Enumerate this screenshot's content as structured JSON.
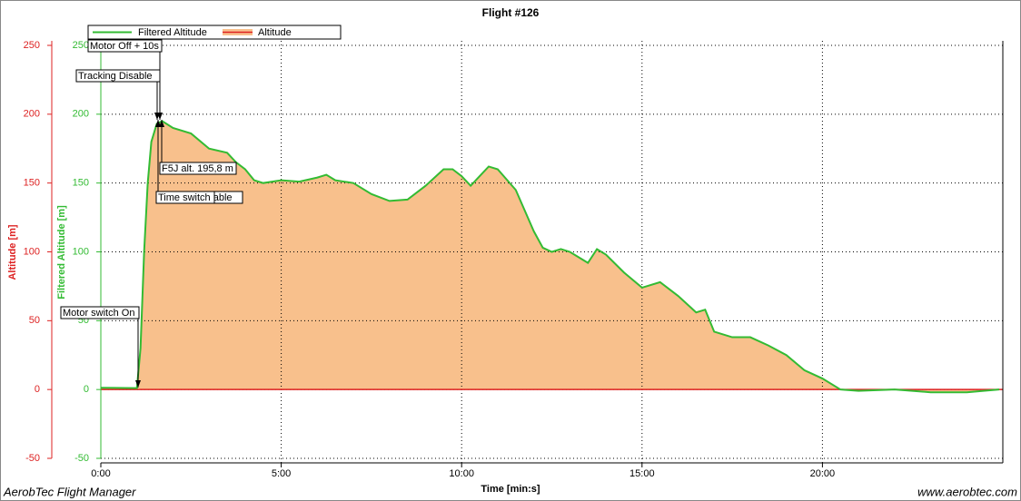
{
  "chart_data": {
    "type": "line",
    "title": "Flight #126",
    "x_label": "Time [min:s]",
    "y_label": "Altitude [m]",
    "y2_label": "Filtered Altitude [m]",
    "footer_left": "AerobTec Flight Manager",
    "footer_right": "www.aerobtec.com",
    "x": [
      0,
      1.0,
      1.1,
      1.2,
      1.3,
      1.4,
      1.55,
      1.7,
      2.0,
      2.5,
      3.0,
      3.5,
      3.75,
      4.0,
      4.25,
      4.5,
      5.0,
      5.5,
      6.0,
      6.25,
      6.5,
      7.0,
      7.5,
      8.0,
      8.5,
      9.0,
      9.5,
      9.75,
      10.0,
      10.25,
      10.5,
      10.75,
      11.0,
      11.5,
      12.0,
      12.25,
      12.5,
      12.75,
      13.0,
      13.5,
      13.75,
      14.0,
      14.5,
      15.0,
      15.5,
      16.0,
      16.5,
      16.75,
      17.0,
      17.5,
      18.0,
      18.5,
      19.0,
      19.5,
      20.0,
      20.5,
      21.0,
      22.0,
      23.0,
      24.0,
      24.9
    ],
    "series": [
      {
        "name": "Filtered Altitude",
        "color": "#33bb33",
        "axis": "y2",
        "values": [
          1.3,
          1,
          30,
          100,
          150,
          180,
          193,
          195,
          190,
          186,
          175,
          172,
          165,
          160,
          152,
          150,
          152,
          151,
          154,
          156,
          152,
          150,
          142,
          137,
          138,
          148,
          160,
          160,
          155,
          148,
          155,
          162,
          160,
          145,
          115,
          103,
          100,
          102,
          100,
          92,
          102,
          98,
          85,
          74,
          78,
          68,
          56,
          58,
          42,
          38,
          38,
          32,
          25,
          14,
          8,
          0,
          -1,
          0,
          -2,
          -2,
          0
        ]
      },
      {
        "name": "Altitude",
        "color": "#f8c08c",
        "line_color": "#dd2222",
        "values": [
          1.3,
          1,
          30,
          100,
          150,
          180,
          193,
          195,
          190,
          186,
          175,
          172,
          165,
          160,
          152,
          150,
          152,
          151,
          154,
          156,
          152,
          150,
          142,
          137,
          138,
          148,
          160,
          160,
          155,
          148,
          155,
          162,
          160,
          145,
          115,
          103,
          100,
          102,
          100,
          92,
          102,
          98,
          85,
          74,
          78,
          68,
          56,
          58,
          42,
          38,
          38,
          32,
          25,
          14,
          8,
          0,
          -1,
          0,
          -2,
          -2,
          0
        ]
      }
    ],
    "xlim": [
      0,
      25
    ],
    "xticks": [
      {
        "value": 0,
        "label": "0:00"
      },
      {
        "value": 5,
        "label": "5:00"
      },
      {
        "value": 10,
        "label": "10:00"
      },
      {
        "value": 15,
        "label": "15:00"
      },
      {
        "value": 20,
        "label": "20:00"
      }
    ],
    "ylim": [
      -50,
      250
    ],
    "yticks": [
      -50,
      0,
      50,
      100,
      150,
      200,
      250
    ],
    "y2lim": [
      -50,
      250
    ],
    "y2ticks": [
      -50,
      0,
      50,
      100,
      150,
      200,
      250
    ],
    "grid": true,
    "annotations": [
      "Motor Off + 10s",
      "Tracking Disable",
      "F5J alt. 195,8 m",
      "Tracking Disable",
      "Time switch",
      "Motor switch On"
    ]
  }
}
